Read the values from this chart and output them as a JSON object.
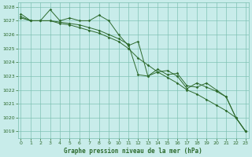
{
  "title": "Graphe pression niveau de la mer (hPa)",
  "background_color": "#c8ecea",
  "grid_color": "#7abfb0",
  "line_color": "#2d6a2d",
  "xlim": [
    -0.3,
    23.3
  ],
  "ylim": [
    1018.5,
    1028.3
  ],
  "yticks": [
    1019,
    1020,
    1021,
    1022,
    1023,
    1024,
    1025,
    1026,
    1027,
    1028
  ],
  "xticks": [
    0,
    1,
    2,
    3,
    4,
    5,
    6,
    7,
    8,
    9,
    10,
    11,
    12,
    13,
    14,
    15,
    16,
    17,
    18,
    19,
    20,
    21,
    22,
    23
  ],
  "series": [
    [
      1027.5,
      1027.0,
      1027.0,
      1027.8,
      1027.0,
      1027.2,
      1027.0,
      1027.0,
      1027.4,
      1027.0,
      1026.0,
      1025.2,
      1025.5,
      1023.0,
      1023.5,
      1023.1,
      1023.2,
      1022.3,
      1022.2,
      1022.5,
      1022.0,
      1021.5,
      1020.0,
      1019.0
    ],
    [
      1027.3,
      1027.0,
      1027.0,
      1027.0,
      1026.8,
      1026.7,
      1026.5,
      1026.3,
      1026.1,
      1025.8,
      1025.5,
      1025.0,
      1024.3,
      1023.8,
      1023.3,
      1022.9,
      1022.5,
      1022.0,
      1021.7,
      1021.3,
      1020.9,
      1020.5,
      1020.0,
      1019.0
    ],
    [
      1027.2,
      1027.0,
      1027.0,
      1027.0,
      1026.9,
      1026.8,
      1026.7,
      1026.5,
      1026.3,
      1026.0,
      1025.7,
      1025.3,
      1023.1,
      1023.0,
      1023.3,
      1023.4,
      1023.0,
      1022.1,
      1022.5,
      1022.2,
      1021.9,
      1021.5,
      1020.0,
      1019.0
    ]
  ]
}
